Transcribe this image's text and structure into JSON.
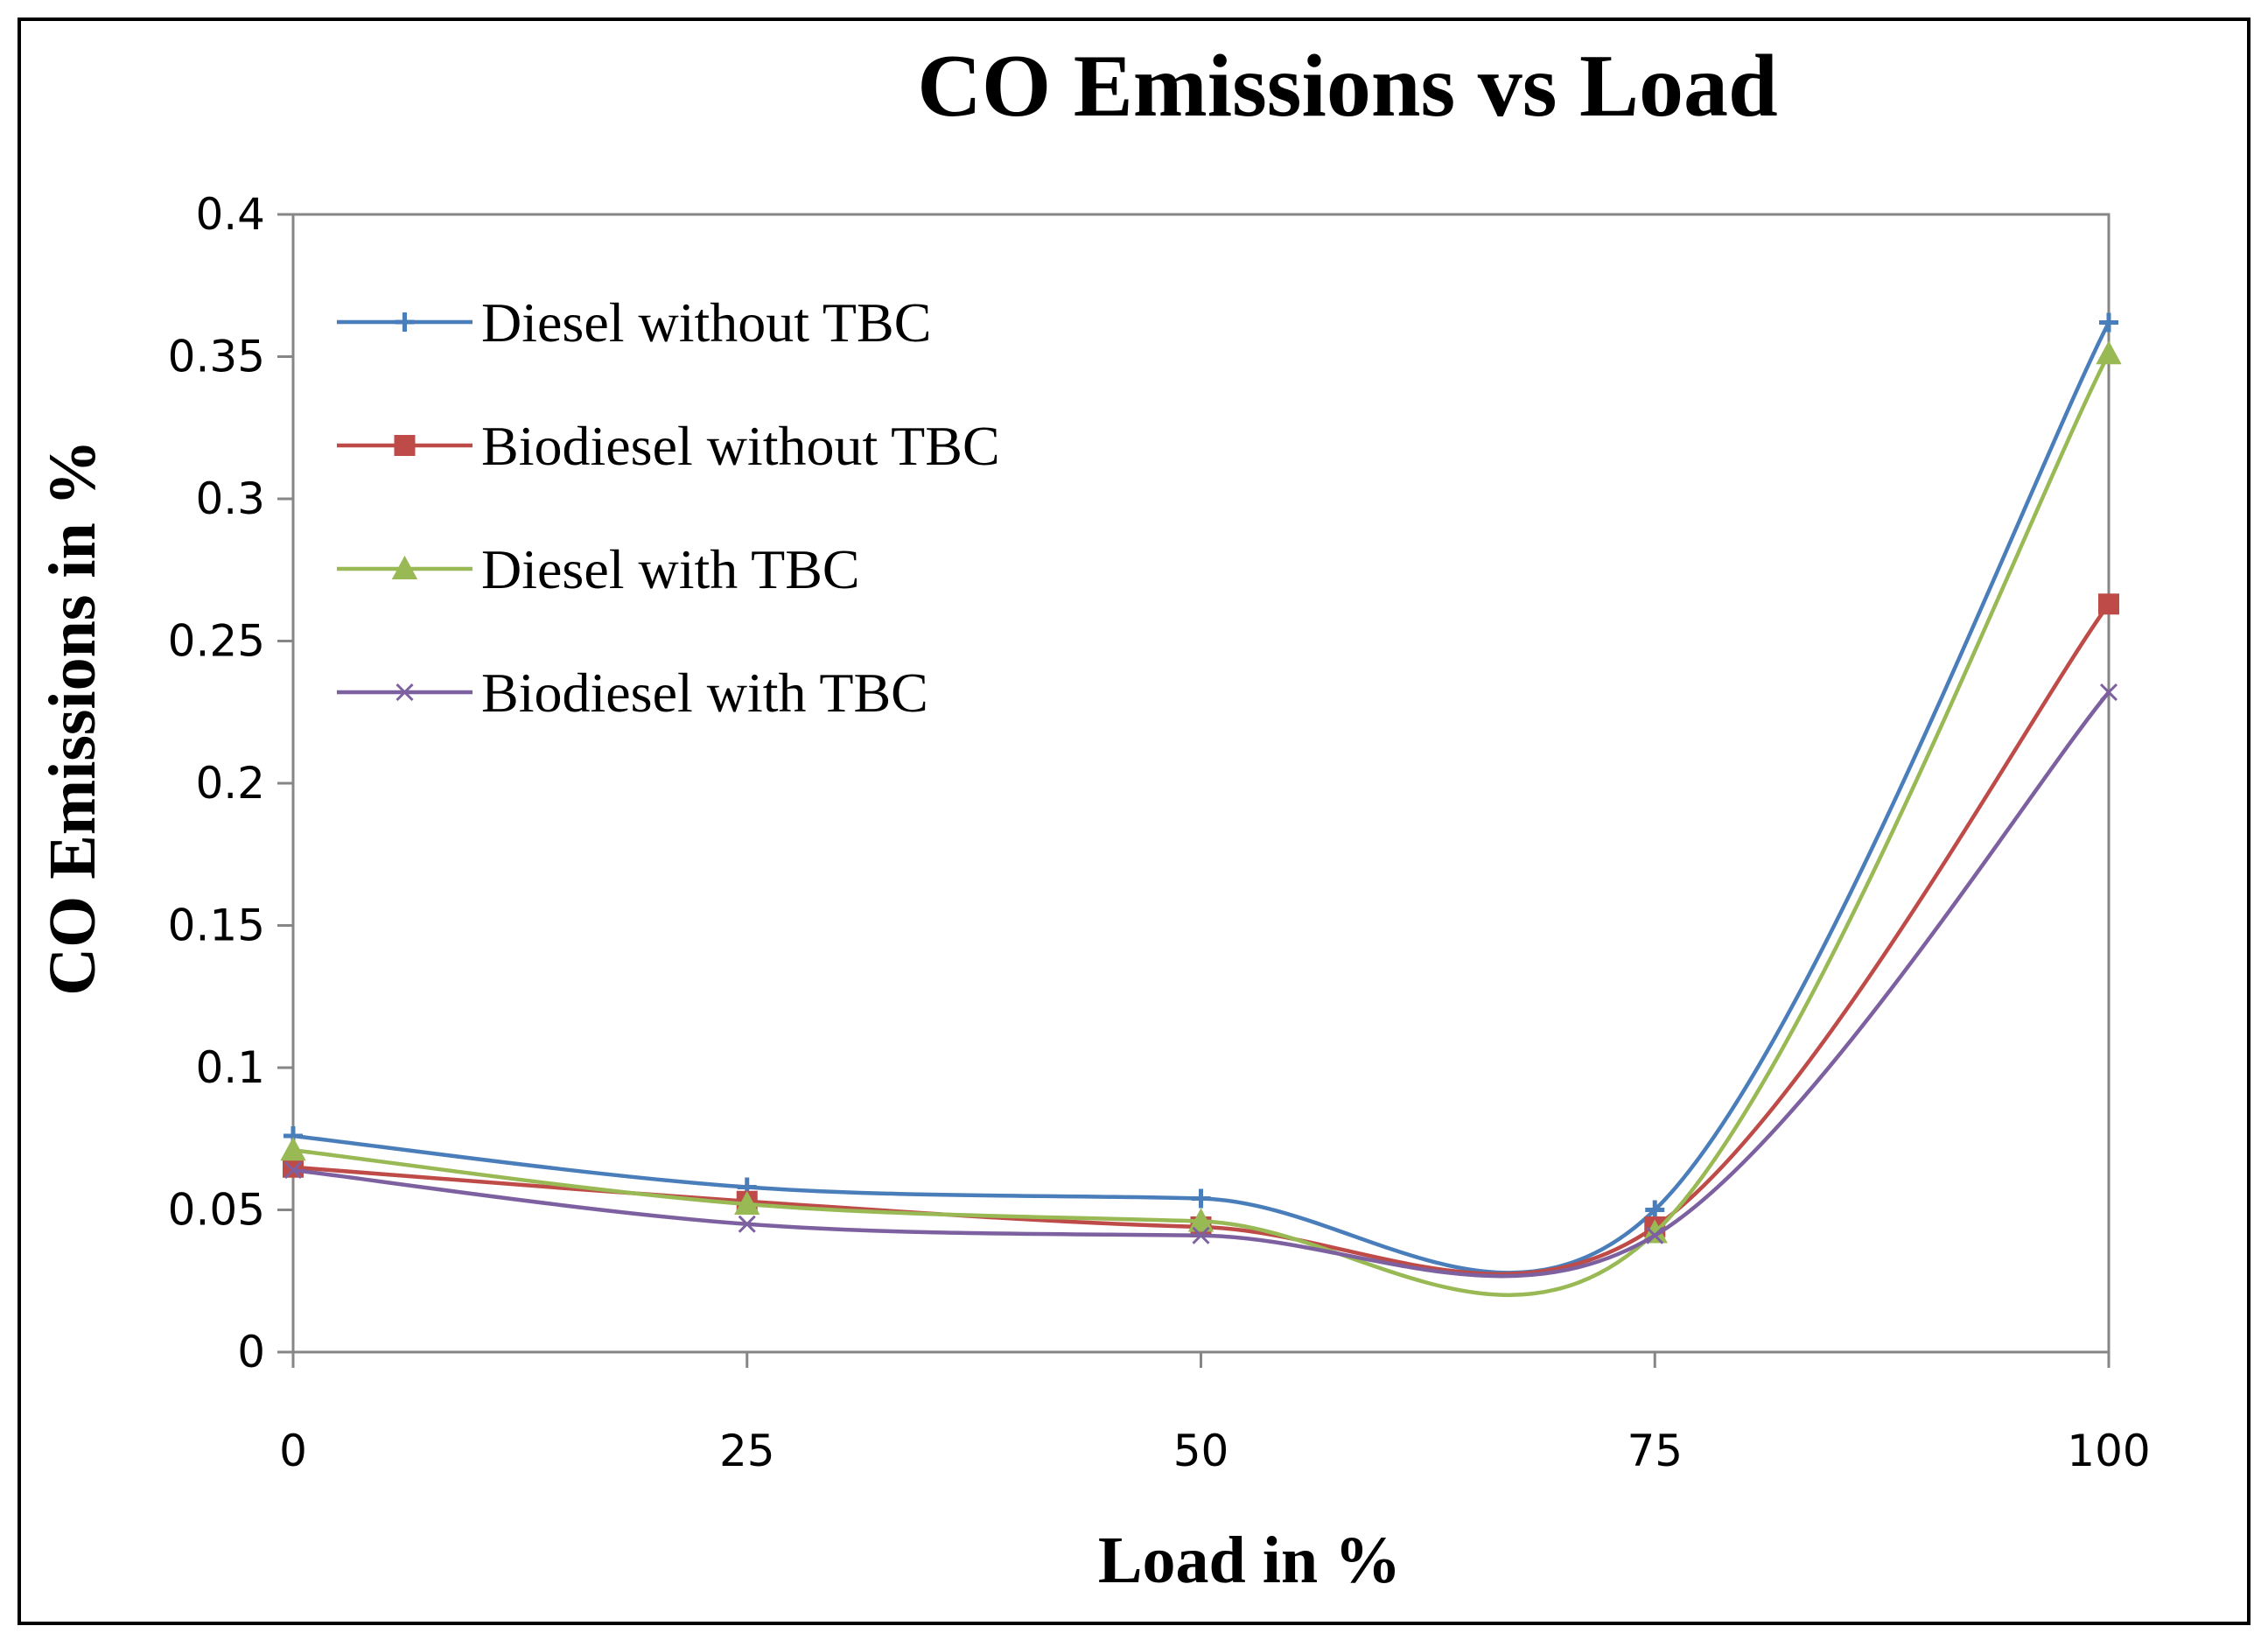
{
  "chart_data": {
    "type": "line",
    "title": "CO Emissions vs Load",
    "xlabel": "Load in %",
    "ylabel": "CO Emissions in %",
    "x": [
      0,
      25,
      50,
      75,
      100
    ],
    "x_tick_labels": [
      "0",
      "25",
      "50",
      "75",
      "100"
    ],
    "y_tick_labels": [
      "0",
      "0.05",
      "0.1",
      "0.15",
      "0.2",
      "0.25",
      "0.3",
      "0.35",
      "0.4"
    ],
    "y_ticks": [
      0,
      0.05,
      0.1,
      0.15,
      0.2,
      0.25,
      0.3,
      0.35,
      0.4
    ],
    "ylim": [
      0,
      0.4
    ],
    "xlim": [
      0,
      100
    ],
    "grid": false,
    "smooth": true,
    "legend_position": "top-left",
    "series": [
      {
        "name": "Diesel without TBC",
        "marker": "plus",
        "color": "#4a7ebb",
        "values": [
          0.076,
          0.058,
          0.054,
          0.05,
          0.362
        ]
      },
      {
        "name": "Biodiesel without TBC",
        "marker": "square",
        "color": "#be4b48",
        "values": [
          0.065,
          0.053,
          0.044,
          0.044,
          0.263
        ]
      },
      {
        "name": "Diesel with TBC",
        "marker": "triangle",
        "color": "#98b954",
        "values": [
          0.071,
          0.052,
          0.046,
          0.042,
          0.351
        ]
      },
      {
        "name": "Biodiesel with TBC",
        "marker": "x",
        "color": "#7d60a0",
        "values": [
          0.064,
          0.045,
          0.041,
          0.041,
          0.232
        ]
      }
    ]
  }
}
